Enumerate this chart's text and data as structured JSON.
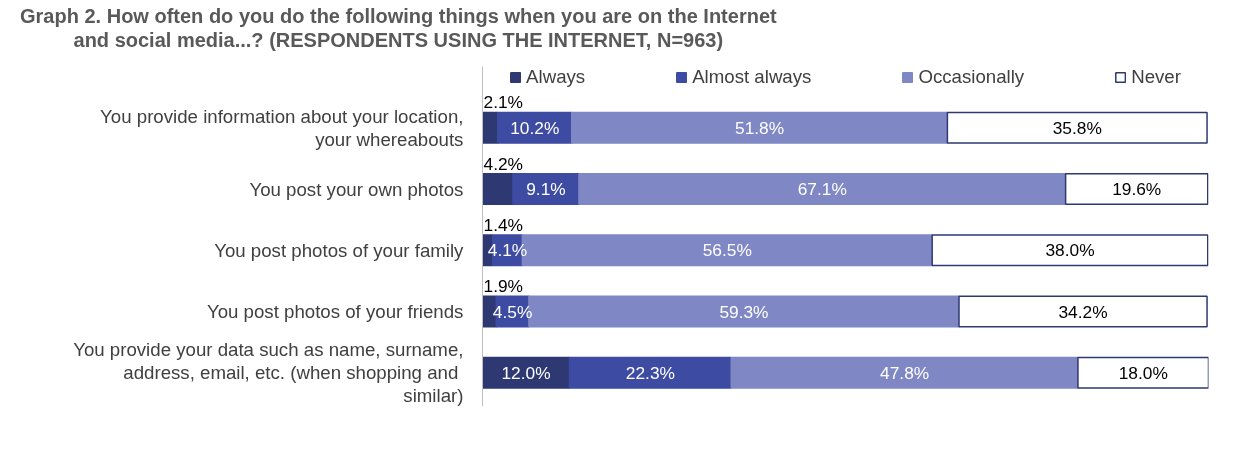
{
  "chart_data": {
    "type": "bar",
    "orientation": "horizontal",
    "stacked": true,
    "title": "Graph 2.  How often do you do the following things when you are on the Internet and social media...? (RESPONDENTS USING THE INTERNET, N=963)",
    "categories": [
      "You provide information about your location, your whereabouts",
      "You post your own photos",
      "You post photos of your family",
      "You post photos of your friends",
      "You provide your data such as name, surname, address, email, etc. (when shopping  and similar)"
    ],
    "series": [
      {
        "name": "Always",
        "color": "#2e3873",
        "values": [
          2.1,
          4.2,
          1.4,
          1.9,
          12.0
        ],
        "value_labels": [
          "2.1%",
          "4.2%",
          "1.4%",
          "1.9%",
          "12.0%"
        ]
      },
      {
        "name": "Almost always",
        "color": "#3d4ba3",
        "values": [
          10.2,
          9.1,
          4.1,
          4.5,
          22.3
        ],
        "value_labels": [
          "10.2%",
          "9.1%",
          "4.1%",
          "4.5%",
          "22.3%"
        ]
      },
      {
        "name": "Occasionally",
        "color": "#7f88c4",
        "values": [
          51.8,
          67.1,
          56.5,
          59.3,
          47.8
        ],
        "value_labels": [
          "51.8%",
          "67.1%",
          "56.5%",
          "59.3%",
          "47.8%"
        ]
      },
      {
        "name": "Never",
        "color": "#ffffff",
        "values": [
          35.8,
          19.6,
          38.0,
          34.2,
          18.0
        ],
        "value_labels": [
          "35.8%",
          "19.6%",
          "38.0%",
          "34.2%",
          "18.0%"
        ]
      }
    ],
    "legend": "top",
    "grid": false
  }
}
